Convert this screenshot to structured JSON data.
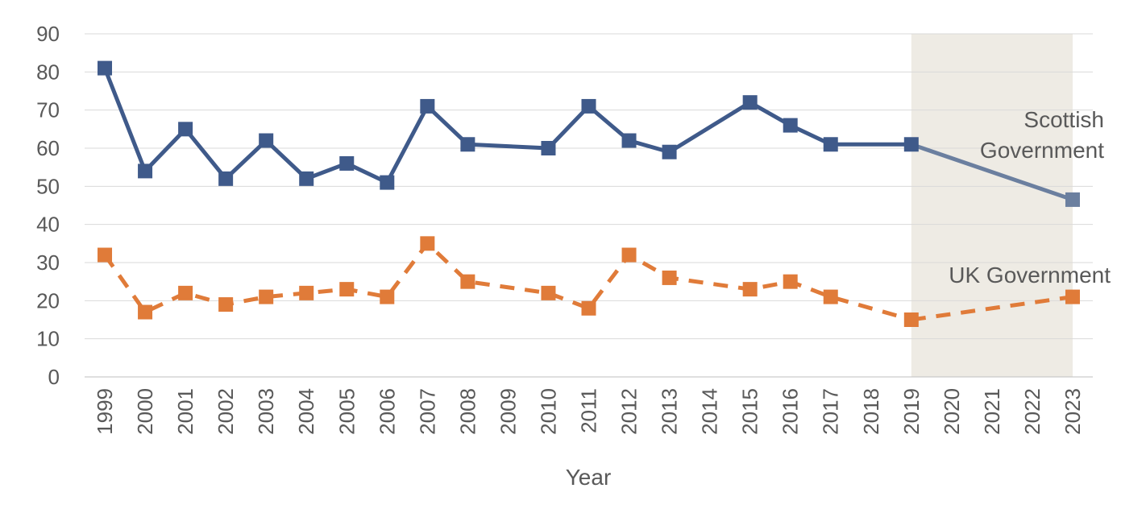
{
  "chart_data": {
    "type": "line",
    "xlabel": "Year",
    "ylabel": "",
    "ylim": [
      0,
      90
    ],
    "yticks": [
      0,
      10,
      20,
      30,
      40,
      50,
      60,
      70,
      80,
      90
    ],
    "categories": [
      "1999",
      "2000",
      "2001",
      "2002",
      "2003",
      "2004",
      "2005",
      "2006",
      "2007",
      "2008",
      "2009",
      "2010",
      "2011",
      "2012",
      "2013",
      "2014",
      "2015",
      "2016",
      "2017",
      "2018",
      "2019",
      "2020",
      "2021",
      "2022",
      "2023"
    ],
    "grid": true,
    "highlight_range": [
      "2019",
      "2023"
    ],
    "highlight_color": "#eeebe4",
    "series": [
      {
        "name": "Scottish Government",
        "label_lines": [
          "Scottish",
          "Government"
        ],
        "color": "#3f5a8a",
        "projection_color": "#6b7f9f",
        "dashed": false,
        "points": [
          {
            "x": "1999",
            "y": 81
          },
          {
            "x": "2000",
            "y": 54
          },
          {
            "x": "2001",
            "y": 65
          },
          {
            "x": "2002",
            "y": 52
          },
          {
            "x": "2003",
            "y": 62
          },
          {
            "x": "2004",
            "y": 52
          },
          {
            "x": "2005",
            "y": 56
          },
          {
            "x": "2006",
            "y": 51
          },
          {
            "x": "2007",
            "y": 71
          },
          {
            "x": "2008",
            "y": 61
          },
          {
            "x": "2010",
            "y": 60
          },
          {
            "x": "2011",
            "y": 71
          },
          {
            "x": "2012",
            "y": 62
          },
          {
            "x": "2013",
            "y": 59
          },
          {
            "x": "2015",
            "y": 72
          },
          {
            "x": "2016",
            "y": 66
          },
          {
            "x": "2017",
            "y": 61
          },
          {
            "x": "2019",
            "y": 61
          },
          {
            "x": "2023",
            "y": 46.5
          }
        ]
      },
      {
        "name": "UK Government",
        "label_lines": [
          "UK Government"
        ],
        "color": "#e07b39",
        "projection_color": "#e07b39",
        "dashed": true,
        "points": [
          {
            "x": "1999",
            "y": 32
          },
          {
            "x": "2000",
            "y": 17
          },
          {
            "x": "2001",
            "y": 22
          },
          {
            "x": "2002",
            "y": 19
          },
          {
            "x": "2003",
            "y": 21
          },
          {
            "x": "2004",
            "y": 22
          },
          {
            "x": "2005",
            "y": 23
          },
          {
            "x": "2006",
            "y": 21
          },
          {
            "x": "2007",
            "y": 35
          },
          {
            "x": "2008",
            "y": 25
          },
          {
            "x": "2010",
            "y": 22
          },
          {
            "x": "2011",
            "y": 18
          },
          {
            "x": "2012",
            "y": 32
          },
          {
            "x": "2013",
            "y": 26
          },
          {
            "x": "2015",
            "y": 23
          },
          {
            "x": "2016",
            "y": 25
          },
          {
            "x": "2017",
            "y": 21
          },
          {
            "x": "2019",
            "y": 15
          },
          {
            "x": "2023",
            "y": 21
          }
        ]
      }
    ]
  }
}
